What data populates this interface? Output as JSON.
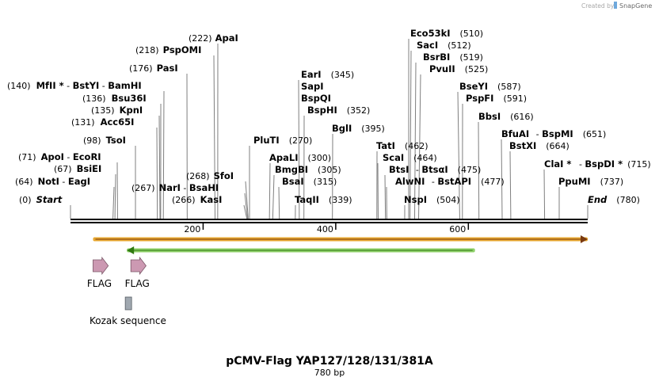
{
  "plasmid": {
    "name": "pCMV-Flag YAP127/128/131/381A",
    "length_label": "780 bp",
    "length_bp": 780
  },
  "credit": {
    "prefix": "Created by",
    "brand": "SnapGene"
  },
  "axis_ticks": [
    "200",
    "400",
    "600"
  ],
  "rows": [
    {
      "parts": [
        {
          "t": "(222)",
          "c": "pos"
        },
        {
          "t": "ApaI",
          "c": "ename"
        }
      ],
      "lines": [
        {
          "top_from": "label",
          "pos": 222
        }
      ]
    },
    {
      "parts": [
        {
          "t": "(218)",
          "c": "pos"
        },
        {
          "t": "PspOMI",
          "c": "ename"
        }
      ],
      "lines": [
        {
          "pos": 218
        }
      ]
    },
    {
      "parts": [
        {
          "t": "(176)",
          "c": "pos"
        },
        {
          "t": "PasI",
          "c": "ename"
        }
      ],
      "lines": [
        {
          "pos": 176
        }
      ]
    },
    {
      "parts": [
        {
          "t": "(140)",
          "c": "pos"
        },
        {
          "t": "MfII *",
          "c": "ename"
        },
        {
          "t": " - ",
          "c": "pos"
        },
        {
          "t": "BstYI",
          "c": "ename"
        },
        {
          "t": " - ",
          "c": "pos"
        },
        {
          "t": "BamHI",
          "c": "ename"
        }
      ],
      "lines": [
        {
          "pos": 140
        }
      ]
    },
    {
      "parts": [
        {
          "t": "(136)",
          "c": "pos"
        },
        {
          "t": "Bsu36I",
          "c": "ename"
        }
      ],
      "lines": [
        {
          "pos": 136
        }
      ]
    },
    {
      "parts": [
        {
          "t": "(135)",
          "c": "pos"
        },
        {
          "t": "KpnI",
          "c": "ename"
        }
      ],
      "lines": [
        {
          "pos": 135
        }
      ]
    },
    {
      "parts": [
        {
          "t": "(131)",
          "c": "pos"
        },
        {
          "t": "Acc65I",
          "c": "ename"
        }
      ],
      "lines": [
        {
          "pos": 131
        }
      ]
    },
    {
      "parts": [
        {
          "t": "(98)",
          "c": "pos"
        },
        {
          "t": "TsoI",
          "c": "ename"
        }
      ],
      "lines": [
        {
          "pos": 98
        }
      ]
    },
    {
      "parts": [
        {
          "t": "(71)",
          "c": "pos"
        },
        {
          "t": "ApoI",
          "c": "ename"
        },
        {
          "t": " - ",
          "c": "pos"
        },
        {
          "t": "EcoRI",
          "c": "ename"
        }
      ],
      "lines": [
        {
          "pos": 71
        }
      ]
    },
    {
      "parts": [
        {
          "t": "(67)",
          "c": "pos"
        },
        {
          "t": "BsiEI",
          "c": "ename"
        }
      ],
      "lines": [
        {
          "pos": 67
        }
      ]
    },
    {
      "parts": [
        {
          "t": "(64)",
          "c": "pos"
        },
        {
          "t": "NotI",
          "c": "ename"
        },
        {
          "t": " - ",
          "c": "pos"
        },
        {
          "t": "EagI",
          "c": "ename"
        }
      ],
      "lines": [
        {
          "pos": 64
        }
      ]
    },
    {
      "parts": [
        {
          "t": "(0)",
          "c": "pos"
        },
        {
          "t": "Start",
          "c": "endlbl"
        }
      ],
      "lines": [
        {
          "pos": 0
        }
      ]
    },
    {
      "parts": [
        {
          "t": "(268)",
          "c": "pos"
        },
        {
          "t": "SfoI",
          "c": "ename"
        }
      ],
      "lines": [
        {
          "pos": 268
        }
      ]
    },
    {
      "parts": [
        {
          "t": "(267)",
          "c": "pos"
        },
        {
          "t": "NarI",
          "c": "ename"
        },
        {
          "t": " - ",
          "c": "pos"
        },
        {
          "t": "BsaHI",
          "c": "ename"
        }
      ],
      "lines": [
        {
          "pos": 267
        }
      ]
    },
    {
      "parts": [
        {
          "t": "(266)",
          "c": "pos"
        },
        {
          "t": "KasI",
          "c": "ename"
        }
      ],
      "lines": [
        {
          "pos": 266
        }
      ]
    },
    {
      "parts": [
        {
          "t": "PluTI",
          "c": "ename"
        },
        {
          "t": "(270)",
          "c": "pos"
        }
      ],
      "lines": [
        {
          "pos": 270
        }
      ]
    },
    {
      "parts": [
        {
          "t": "ApaLI",
          "c": "ename"
        },
        {
          "t": "(300)",
          "c": "pos"
        }
      ],
      "lines": [
        {
          "pos": 300
        }
      ]
    },
    {
      "parts": [
        {
          "t": "BmgBI",
          "c": "ename"
        },
        {
          "t": "(305)",
          "c": "pos"
        }
      ],
      "lines": [
        {
          "pos": 305
        }
      ]
    },
    {
      "parts": [
        {
          "t": "BsaI",
          "c": "ename"
        },
        {
          "t": "(315)",
          "c": "pos"
        }
      ],
      "lines": [
        {
          "pos": 315
        }
      ]
    },
    {
      "parts": [
        {
          "t": "TaqII",
          "c": "ename"
        },
        {
          "t": "(339)",
          "c": "pos"
        }
      ],
      "lines": [
        {
          "pos": 339
        }
      ]
    },
    {
      "parts": [
        {
          "t": "EarI",
          "c": "ename"
        },
        {
          "t": "(345)",
          "c": "pos"
        }
      ],
      "lines": [
        {
          "pos": 345
        }
      ]
    },
    {
      "parts": [
        {
          "t": "SapI",
          "c": "ename"
        }
      ],
      "lines": []
    },
    {
      "parts": [
        {
          "t": "BspQI",
          "c": "ename"
        }
      ],
      "lines": []
    },
    {
      "parts": [
        {
          "t": "BspHI",
          "c": "ename"
        },
        {
          "t": "(352)",
          "c": "pos"
        }
      ],
      "lines": [
        {
          "pos": 352
        }
      ]
    },
    {
      "parts": [
        {
          "t": "BglI",
          "c": "ename"
        },
        {
          "t": "(395)",
          "c": "pos"
        }
      ],
      "lines": [
        {
          "pos": 395
        }
      ]
    },
    {
      "parts": [
        {
          "t": "TatI",
          "c": "ename"
        },
        {
          "t": "(462)",
          "c": "pos"
        }
      ],
      "lines": [
        {
          "pos": 462
        }
      ]
    },
    {
      "parts": [
        {
          "t": "ScaI",
          "c": "ename"
        },
        {
          "t": "(464)",
          "c": "pos"
        }
      ],
      "lines": [
        {
          "pos": 464
        }
      ]
    },
    {
      "parts": [
        {
          "t": "BtsI",
          "c": "ename"
        },
        {
          "t": " - ",
          "c": "pos"
        },
        {
          "t": "BtsαI",
          "c": "ename"
        },
        {
          "t": "(475)",
          "c": "pos"
        }
      ],
      "lines": [
        {
          "pos": 475
        }
      ]
    },
    {
      "parts": [
        {
          "t": "AlwNI",
          "c": "ename"
        },
        {
          "t": " - ",
          "c": "pos"
        },
        {
          "t": "BstAPI",
          "c": "ename"
        },
        {
          "t": "(477)",
          "c": "pos"
        }
      ],
      "lines": [
        {
          "pos": 477
        }
      ]
    },
    {
      "parts": [
        {
          "t": "NspI",
          "c": "ename"
        },
        {
          "t": "(504)",
          "c": "pos"
        }
      ],
      "lines": [
        {
          "pos": 504
        }
      ]
    },
    {
      "parts": [
        {
          "t": "Eco53kI",
          "c": "ename"
        },
        {
          "t": "(510)",
          "c": "pos"
        }
      ],
      "lines": [
        {
          "pos": 510
        }
      ]
    },
    {
      "parts": [
        {
          "t": "SacI",
          "c": "ename"
        },
        {
          "t": "(512)",
          "c": "pos"
        }
      ],
      "lines": [
        {
          "pos": 512
        }
      ]
    },
    {
      "parts": [
        {
          "t": "BsrBI",
          "c": "ename"
        },
        {
          "t": "(519)",
          "c": "pos"
        }
      ],
      "lines": [
        {
          "pos": 519
        }
      ]
    },
    {
      "parts": [
        {
          "t": "PvuII",
          "c": "ename"
        },
        {
          "t": "(525)",
          "c": "pos"
        }
      ],
      "lines": [
        {
          "pos": 525
        }
      ]
    },
    {
      "parts": [
        {
          "t": "BseYI",
          "c": "ename"
        },
        {
          "t": "(587)",
          "c": "pos"
        }
      ],
      "lines": [
        {
          "pos": 587
        }
      ]
    },
    {
      "parts": [
        {
          "t": "PspFI",
          "c": "ename"
        },
        {
          "t": "(591)",
          "c": "pos"
        }
      ],
      "lines": [
        {
          "pos": 591
        }
      ]
    },
    {
      "parts": [
        {
          "t": "BbsI",
          "c": "ename"
        },
        {
          "t": "(616)",
          "c": "pos"
        }
      ],
      "lines": [
        {
          "pos": 616
        }
      ]
    },
    {
      "parts": [
        {
          "t": "BfuAI",
          "c": "ename"
        },
        {
          "t": " - ",
          "c": "pos"
        },
        {
          "t": "BspMI",
          "c": "ename"
        },
        {
          "t": "(651)",
          "c": "pos"
        }
      ],
      "lines": [
        {
          "pos": 651
        }
      ]
    },
    {
      "parts": [
        {
          "t": "BstXI",
          "c": "ename"
        },
        {
          "t": "(664)",
          "c": "pos"
        }
      ],
      "lines": [
        {
          "pos": 664
        }
      ]
    },
    {
      "parts": [
        {
          "t": "ClaI *",
          "c": "ename"
        },
        {
          "t": " - ",
          "c": "pos"
        },
        {
          "t": "BspDI *",
          "c": "ename"
        },
        {
          "t": "(715)",
          "c": "pos"
        }
      ],
      "lines": [
        {
          "pos": 715
        }
      ]
    },
    {
      "parts": [
        {
          "t": "PpuMI",
          "c": "ename"
        },
        {
          "t": "(737)",
          "c": "pos"
        }
      ],
      "lines": [
        {
          "pos": 737
        }
      ]
    },
    {
      "parts": [
        {
          "t": "End",
          "c": "endlbl"
        },
        {
          "t": "(780)",
          "c": "pos"
        }
      ],
      "lines": [
        {
          "pos": 780
        }
      ]
    }
  ],
  "features": [
    {
      "name": "FLAG",
      "type": "arrow",
      "start": 34,
      "end": 57,
      "color": "#cc99b2"
    },
    {
      "name": "FLAG",
      "type": "arrow",
      "start": 91,
      "end": 114,
      "color": "#cc99b2"
    },
    {
      "name": "Kozak sequence",
      "type": "box",
      "start": 82,
      "end": 91,
      "color": "#a0a8b0"
    }
  ],
  "orfs": [
    {
      "start": 34,
      "end": 780,
      "direction": "forward",
      "color": "#e8a830",
      "core": "#7a3a10"
    },
    {
      "start": 85,
      "end": 610,
      "direction": "reverse",
      "color": "#8fd16a",
      "core": "#2f7a10"
    }
  ],
  "colors": {
    "backbone": "#000000",
    "line": "#7f7f7f"
  }
}
